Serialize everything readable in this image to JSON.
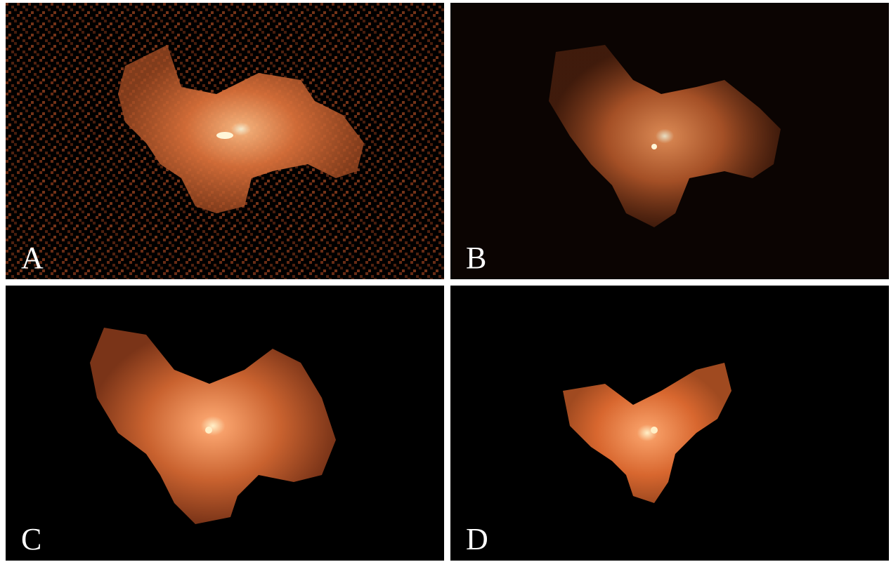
{
  "panels": [
    {
      "id": "A",
      "label": "A",
      "background": "#000000",
      "noise": "high"
    },
    {
      "id": "B",
      "label": "B",
      "background": "#0b0402",
      "noise": "smooth"
    },
    {
      "id": "C",
      "label": "C",
      "background": "#000000",
      "noise": "none"
    },
    {
      "id": "D",
      "label": "D",
      "background": "#000000",
      "noise": "none"
    }
  ],
  "colors": {
    "core": "#fff6d8",
    "bright": "#f7a06a",
    "mid": "#d86a38",
    "dim": "#7a3418",
    "noise": "#8a3a1c",
    "divider": "#ffffff"
  }
}
